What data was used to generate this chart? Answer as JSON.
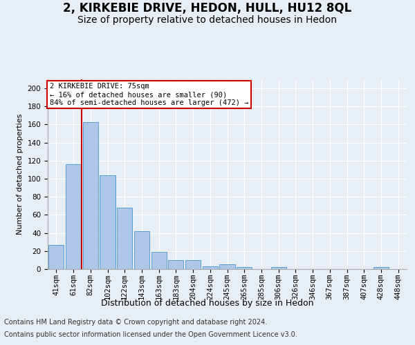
{
  "title": "2, KIRKEBIE DRIVE, HEDON, HULL, HU12 8QL",
  "subtitle": "Size of property relative to detached houses in Hedon",
  "xlabel": "Distribution of detached houses by size in Hedon",
  "ylabel": "Number of detached properties",
  "categories": [
    "41sqm",
    "61sqm",
    "82sqm",
    "102sqm",
    "122sqm",
    "143sqm",
    "163sqm",
    "183sqm",
    "204sqm",
    "224sqm",
    "245sqm",
    "265sqm",
    "285sqm",
    "306sqm",
    "326sqm",
    "346sqm",
    "367sqm",
    "387sqm",
    "407sqm",
    "428sqm",
    "448sqm"
  ],
  "values": [
    27,
    116,
    163,
    104,
    68,
    42,
    19,
    10,
    10,
    3,
    5,
    2,
    0,
    2,
    0,
    0,
    0,
    0,
    0,
    2,
    0
  ],
  "bar_color": "#aec6e8",
  "bar_edgecolor": "#5a9fd4",
  "ylim": [
    0,
    210
  ],
  "yticks": [
    0,
    20,
    40,
    60,
    80,
    100,
    120,
    140,
    160,
    180,
    200
  ],
  "annotation_text": "2 KIRKEBIE DRIVE: 75sqm\n← 16% of detached houses are smaller (90)\n84% of semi-detached houses are larger (472) →",
  "annotation_box_color": "#ffffff",
  "annotation_box_edgecolor": "#cc0000",
  "red_line_color": "#cc0000",
  "footer_line1": "Contains HM Land Registry data © Crown copyright and database right 2024.",
  "footer_line2": "Contains public sector information licensed under the Open Government Licence v3.0.",
  "background_color": "#e8eef5",
  "title_fontsize": 12,
  "subtitle_fontsize": 10,
  "tick_fontsize": 7.5,
  "footer_fontsize": 7,
  "ylabel_fontsize": 8,
  "xlabel_fontsize": 9
}
